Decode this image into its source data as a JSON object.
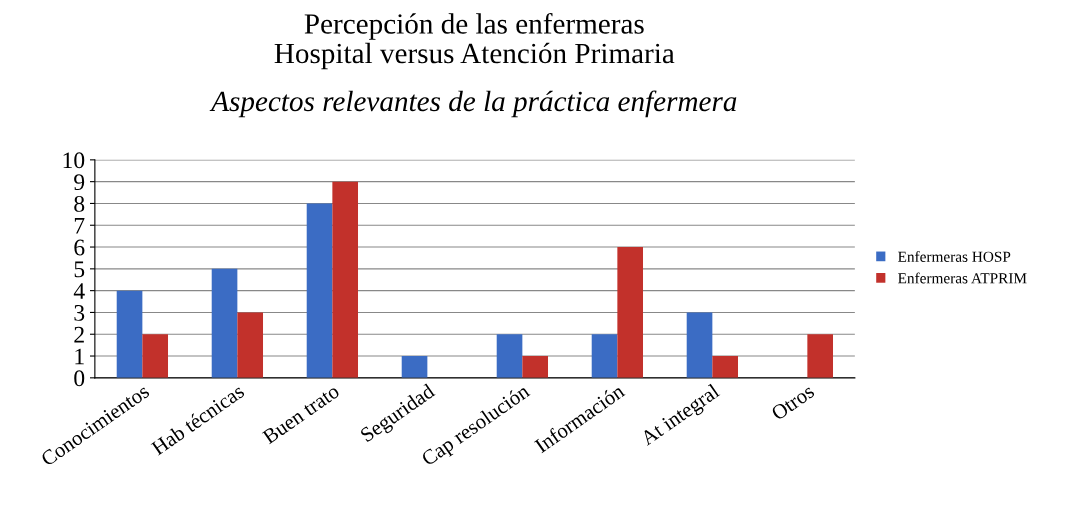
{
  "chart_data": {
    "type": "bar",
    "title": "Percepción de las enfermeras\nHospital versus Atención Primaria",
    "subtitle": "Aspectos relevantes de la práctica enfermera",
    "categories": [
      "Conocimientos",
      "Hab técnicas",
      "Buen trato",
      "Seguridad",
      "Cap resolución",
      "Información",
      "At integral",
      "Otros"
    ],
    "series": [
      {
        "name": "Enfermeras HOSP",
        "color": "#3b6cc4",
        "values": [
          4,
          5,
          8,
          1,
          2,
          2,
          3,
          null
        ]
      },
      {
        "name": "Enfermeras ATPRIM",
        "color": "#c2312b",
        "values": [
          2,
          3,
          9,
          null,
          1,
          6,
          1,
          2
        ]
      }
    ],
    "ylim": [
      0,
      10
    ],
    "yticks": [
      0,
      1,
      2,
      3,
      4,
      5,
      6,
      7,
      8,
      9,
      10
    ],
    "grid": "y",
    "legend": "right"
  }
}
